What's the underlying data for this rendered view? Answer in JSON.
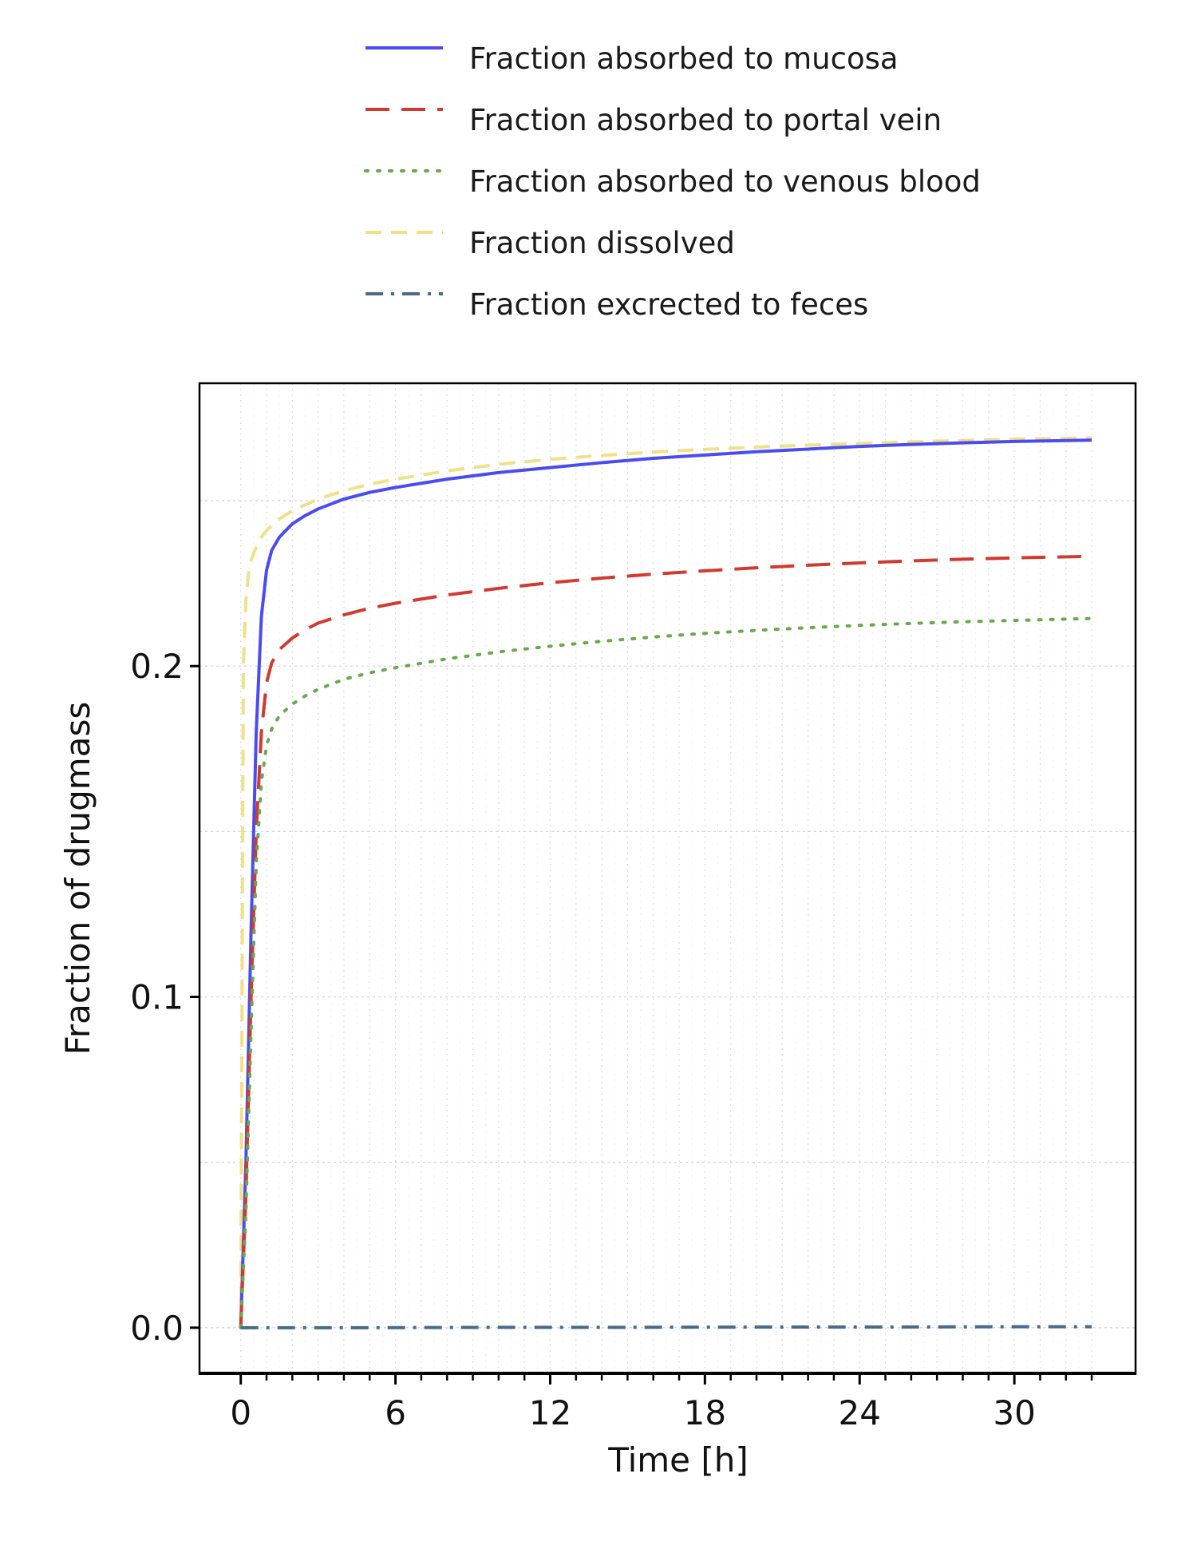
{
  "chart_data": {
    "type": "line",
    "title": "",
    "xlabel": "Time [h]",
    "ylabel": "Fraction of drugmass",
    "xlim": [
      -1.6,
      34.7
    ],
    "ylim": [
      -0.0138,
      0.2855
    ],
    "xticks": [
      0,
      6,
      12,
      18,
      24,
      30
    ],
    "xtick_labels": [
      "0",
      "6",
      "12",
      "18",
      "24",
      "30"
    ],
    "yticks": [
      0.0,
      0.1,
      0.2
    ],
    "ytick_labels": [
      "0.0",
      "0.1",
      "0.2"
    ],
    "grid": true,
    "legend_position": "top",
    "series": [
      {
        "name": "Fraction absorbed to mucosa",
        "color": "#4b4cf0",
        "dash": "solid",
        "x": [
          0,
          0.2,
          0.4,
          0.6,
          0.8,
          1.0,
          1.2,
          1.5,
          2,
          2.5,
          3,
          4,
          5,
          6,
          8,
          10,
          12,
          14,
          16,
          18,
          20,
          22,
          24,
          26,
          28,
          30,
          33
        ],
        "y": [
          0,
          0.05,
          0.12,
          0.18,
          0.215,
          0.229,
          0.235,
          0.239,
          0.243,
          0.2455,
          0.2475,
          0.2505,
          0.2525,
          0.254,
          0.2565,
          0.2585,
          0.26,
          0.2615,
          0.2628,
          0.2638,
          0.2648,
          0.2656,
          0.2664,
          0.267,
          0.2675,
          0.2679,
          0.2683
        ]
      },
      {
        "name": "Fraction absorbed to portal vein",
        "color": "#d03a2f",
        "dash": "long-dash",
        "x": [
          0,
          0.2,
          0.4,
          0.6,
          0.8,
          1.0,
          1.2,
          1.5,
          2,
          2.5,
          3,
          4,
          5,
          6,
          8,
          10,
          12,
          14,
          16,
          18,
          20,
          22,
          24,
          26,
          28,
          30,
          33
        ],
        "y": [
          0,
          0.04,
          0.1,
          0.15,
          0.18,
          0.195,
          0.201,
          0.205,
          0.2085,
          0.211,
          0.213,
          0.2155,
          0.2175,
          0.219,
          0.2215,
          0.2235,
          0.2252,
          0.2266,
          0.2278,
          0.2288,
          0.2297,
          0.2305,
          0.2312,
          0.2318,
          0.2323,
          0.2327,
          0.2332
        ]
      },
      {
        "name": "Fraction absorbed to venous blood",
        "color": "#6aa84f",
        "dash": "dotted",
        "x": [
          0,
          0.2,
          0.4,
          0.6,
          0.8,
          1.0,
          1.2,
          1.5,
          2,
          2.5,
          3,
          4,
          5,
          6,
          8,
          10,
          12,
          14,
          16,
          18,
          20,
          22,
          24,
          26,
          28,
          30,
          33
        ],
        "y": [
          0,
          0.035,
          0.09,
          0.14,
          0.165,
          0.176,
          0.181,
          0.185,
          0.1885,
          0.191,
          0.193,
          0.196,
          0.198,
          0.1995,
          0.2022,
          0.2043,
          0.206,
          0.2075,
          0.2088,
          0.2099,
          0.2108,
          0.2116,
          0.2123,
          0.2129,
          0.2134,
          0.2138,
          0.2144
        ]
      },
      {
        "name": "Fraction dissolved",
        "color": "#f0e08a",
        "dash": "dashed",
        "x": [
          0,
          0.05,
          0.1,
          0.2,
          0.3,
          0.4,
          0.6,
          0.8,
          1.0,
          1.5,
          2,
          3,
          4,
          5,
          6,
          8,
          10,
          12,
          14,
          16,
          18,
          20,
          22,
          24,
          26,
          28,
          30,
          33
        ],
        "y": [
          0,
          0.1,
          0.2,
          0.22,
          0.228,
          0.232,
          0.236,
          0.239,
          0.241,
          0.2445,
          0.247,
          0.2505,
          0.253,
          0.255,
          0.2565,
          0.259,
          0.261,
          0.2625,
          0.2637,
          0.2647,
          0.2655,
          0.2662,
          0.2668,
          0.2673,
          0.2678,
          0.2682,
          0.2686,
          0.269
        ]
      },
      {
        "name": "Fraction excrected to feces",
        "color": "#4a6a8a",
        "dash": "dash-dot",
        "x": [
          0,
          5,
          10,
          15,
          20,
          25,
          30,
          33
        ],
        "y": [
          0,
          0,
          0.0001,
          0.0001,
          0.0002,
          0.0002,
          0.0003,
          0.0003
        ]
      }
    ]
  }
}
